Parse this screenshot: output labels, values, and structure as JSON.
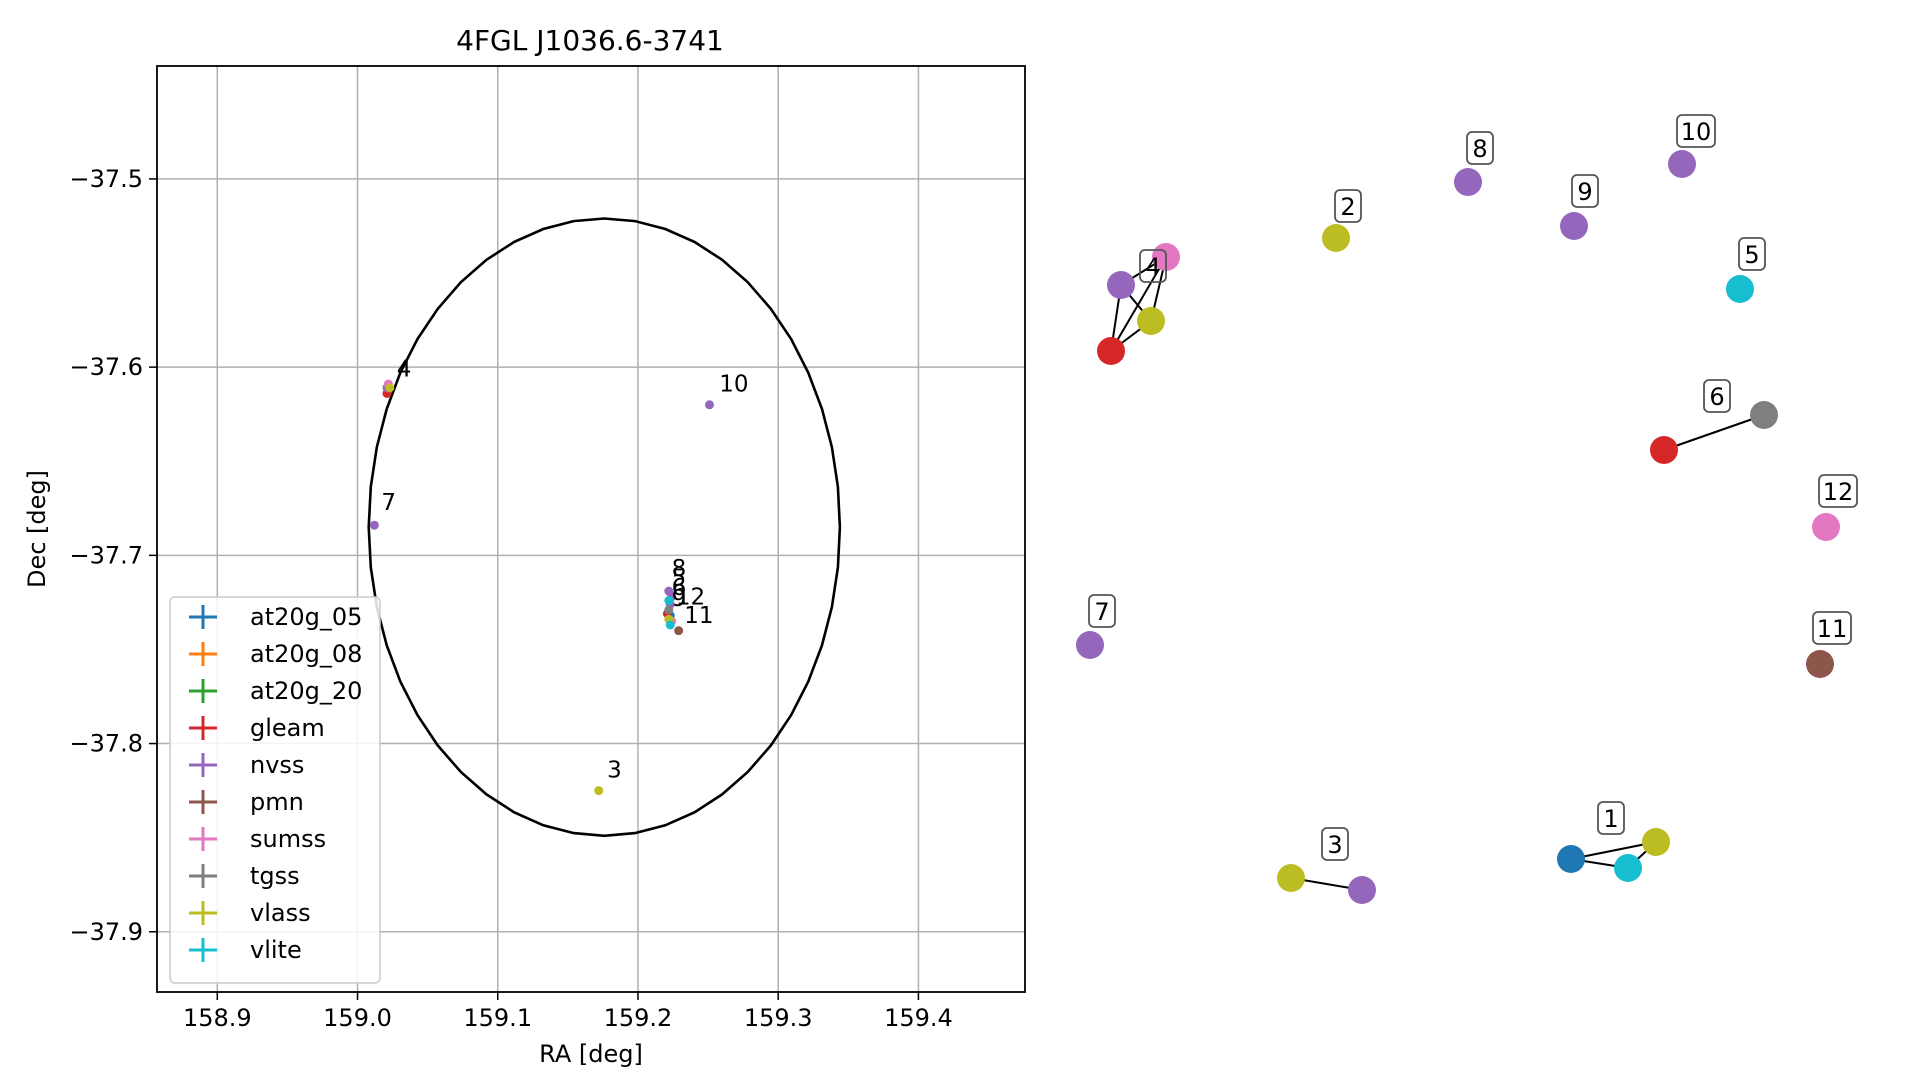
{
  "chart_data": [
    {
      "type": "scatter",
      "title": "4FGL J1036.6-3741",
      "xlabel": "RA [deg]",
      "ylabel": "Dec [deg]",
      "xlim": [
        158.857,
        159.476
      ],
      "ylim": [
        -37.932,
        -37.44
      ],
      "xticks": [
        158.9,
        159.0,
        159.1,
        159.2,
        159.3,
        159.4
      ],
      "xtick_labels": [
        "158.9",
        "159.0",
        "159.1",
        "159.2",
        "159.3",
        "159.4"
      ],
      "yticks": [
        -37.5,
        -37.6,
        -37.7,
        -37.8,
        -37.9
      ],
      "ytick_labels": [
        "−37.5",
        "−37.6",
        "−37.7",
        "−37.8",
        "−37.9"
      ],
      "grid": true,
      "legend_position": "lower-left",
      "ellipse": {
        "center": [
          159.176,
          -37.685
        ],
        "semi_axis_ra_deg": 0.168,
        "semi_axis_dec_deg": 0.164
      },
      "series": [
        {
          "name": "at20g_05",
          "color": "#1f77b4",
          "points": [
            [
              159.223,
              -37.732
            ]
          ]
        },
        {
          "name": "at20g_08",
          "color": "#ff7f0e",
          "points": []
        },
        {
          "name": "at20g_20",
          "color": "#2ca02c",
          "points": []
        },
        {
          "name": "gleam",
          "color": "#d62728",
          "points": [
            [
              159.021,
              -37.614
            ],
            [
              159.221,
              -37.731
            ]
          ]
        },
        {
          "name": "nvss",
          "color": "#9467bd",
          "points": [
            [
              159.021,
              -37.611
            ],
            [
              159.012,
              -37.684
            ],
            [
              159.251,
              -37.62
            ],
            [
              159.222,
              -37.719
            ],
            [
              159.223,
              -37.726
            ],
            [
              159.224,
              -37.722
            ]
          ]
        },
        {
          "name": "pmn",
          "color": "#8c564b",
          "points": [
            [
              159.229,
              -37.74
            ]
          ]
        },
        {
          "name": "sumss",
          "color": "#e377c2",
          "points": [
            [
              159.022,
              -37.609
            ],
            [
              159.224,
              -37.735
            ]
          ]
        },
        {
          "name": "tgss",
          "color": "#7f7f7f",
          "points": [
            [
              159.222,
              -37.729
            ]
          ]
        },
        {
          "name": "vlass",
          "color": "#bcbd22",
          "points": [
            [
              159.023,
              -37.611
            ],
            [
              159.172,
              -37.825
            ],
            [
              159.222,
              -37.734
            ]
          ]
        },
        {
          "name": "vlite",
          "color": "#17becf",
          "points": [
            [
              159.222,
              -37.724
            ],
            [
              159.223,
              -37.737
            ]
          ]
        }
      ],
      "annotations": [
        {
          "text": "4",
          "x": 159.028,
          "y": -37.605
        },
        {
          "text": "10",
          "x": 159.258,
          "y": -37.613
        },
        {
          "text": "7",
          "x": 159.017,
          "y": -37.676
        },
        {
          "text": "8",
          "x": 159.224,
          "y": -37.711
        },
        {
          "text": "5",
          "x": 159.224,
          "y": -37.716
        },
        {
          "text": "6",
          "x": 159.224,
          "y": -37.721
        },
        {
          "text": "9",
          "x": 159.224,
          "y": -37.727
        },
        {
          "text": "12",
          "x": 159.227,
          "y": -37.726
        },
        {
          "text": "11",
          "x": 159.233,
          "y": -37.736
        },
        {
          "text": "3",
          "x": 159.178,
          "y": -37.818
        }
      ]
    },
    {
      "type": "network",
      "nodes": [
        {
          "label": "",
          "color": "#d62728"
        },
        {
          "label": "",
          "color": "#9467bd"
        },
        {
          "label": "4",
          "color": "#bcbd22"
        },
        {
          "label": "",
          "color": "#e377c2"
        },
        {
          "label": "2",
          "color": "#bcbd22"
        },
        {
          "label": "8",
          "color": "#9467bd"
        },
        {
          "label": "9",
          "color": "#9467bd"
        },
        {
          "label": "10",
          "color": "#9467bd"
        },
        {
          "label": "5",
          "color": "#17becf"
        },
        {
          "label": "",
          "color": "#d62728"
        },
        {
          "label": "6",
          "color": "#7f7f7f"
        },
        {
          "label": "12",
          "color": "#e377c2"
        },
        {
          "label": "7",
          "color": "#9467bd"
        },
        {
          "label": "11",
          "color": "#8c564b"
        },
        {
          "label": "",
          "color": "#bcbd22"
        },
        {
          "label": "3",
          "color": "#9467bd"
        },
        {
          "label": "",
          "color": "#1f77b4"
        },
        {
          "label": "",
          "color": "#17becf"
        },
        {
          "label": "1",
          "color": "#bcbd22"
        }
      ],
      "edges": [
        [
          0,
          1
        ],
        [
          0,
          2
        ],
        [
          0,
          3
        ],
        [
          1,
          2
        ],
        [
          1,
          3
        ],
        [
          2,
          3
        ],
        [
          9,
          10
        ],
        [
          14,
          15
        ],
        [
          16,
          17
        ],
        [
          16,
          18
        ],
        [
          17,
          18
        ]
      ]
    }
  ]
}
